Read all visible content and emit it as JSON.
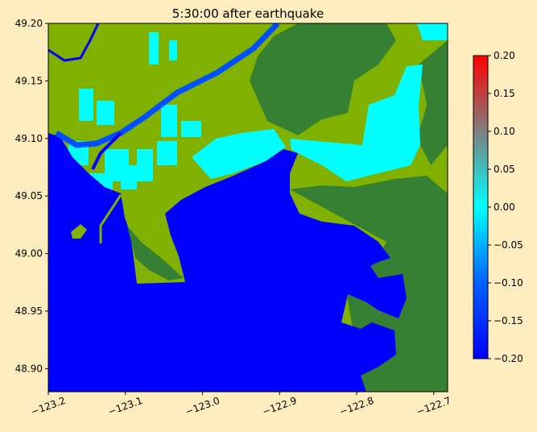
{
  "chart_data": {
    "type": "heatmap",
    "title": "5:30:00 after earthquake",
    "xlabel": "",
    "ylabel": "",
    "xlim": [
      -123.2,
      -122.682
    ],
    "ylim": [
      48.88,
      49.2
    ],
    "xticks": [
      -123.2,
      -123.1,
      -123.0,
      -122.9,
      -122.8,
      -122.7
    ],
    "xtick_labels": [
      "−123.2",
      "−123.1",
      "−123.0",
      "−122.9",
      "−122.8",
      "−122.7"
    ],
    "yticks": [
      49.2,
      49.15,
      49.1,
      49.05,
      49.0,
      48.95,
      48.9
    ],
    "ytick_labels": [
      "49.20",
      "49.15",
      "49.10",
      "49.05",
      "49.00",
      "48.95",
      "48.90"
    ],
    "colorbar": {
      "range": [
        -0.2,
        0.2
      ],
      "ticks": [
        0.2,
        0.15,
        0.1,
        0.05,
        0.0,
        -0.05,
        -0.1,
        -0.15,
        -0.2
      ],
      "tick_labels": [
        "0.20",
        "0.15",
        "0.10",
        "0.05",
        "0.00",
        "−0.05",
        "−0.10",
        "−0.15",
        "−0.20"
      ],
      "colors": [
        "#0000ff",
        "#0080ff",
        "#00ffff",
        "#7f7f7f",
        "#ff0000"
      ]
    },
    "grid": false,
    "colors": {
      "water": "#0000ff",
      "land_low": "#80b000",
      "land_high": "#368034",
      "flooded": "#00ffff",
      "river": "#0050ff"
    }
  }
}
